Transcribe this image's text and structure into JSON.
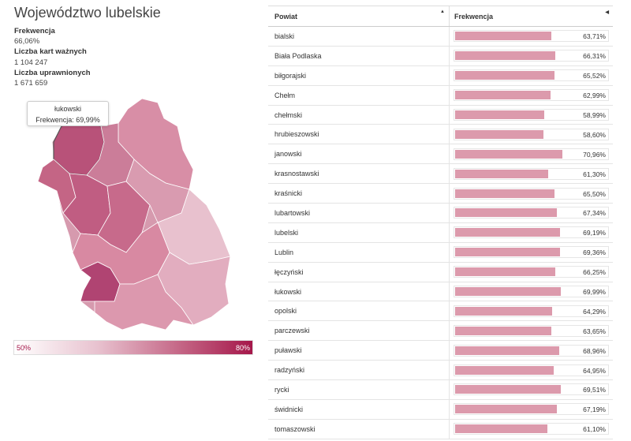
{
  "title": "Województwo lubelskie",
  "stats": [
    {
      "label": "Frekwencja",
      "value": "66,06%"
    },
    {
      "label": "Liczba kart ważnych",
      "value": "1 104 247"
    },
    {
      "label": "Liczba uprawnionych",
      "value": "1 671 659"
    }
  ],
  "tooltip": {
    "name": "łukowski",
    "text": "Frekwencja: 69,99%"
  },
  "legend": {
    "min": "50%",
    "max": "80%"
  },
  "colors": {
    "bar": "#dc9aac",
    "scale_low": "#ffffff",
    "scale_high": "#a5174a"
  },
  "table": {
    "headers": [
      "Powiat",
      "Frekwencja"
    ],
    "rows": [
      {
        "name": "bialski",
        "turnout": 63.71,
        "label": "63,71%"
      },
      {
        "name": "Biała Podlaska",
        "turnout": 66.31,
        "label": "66,31%"
      },
      {
        "name": "biłgorajski",
        "turnout": 65.52,
        "label": "65,52%"
      },
      {
        "name": "Chełm",
        "turnout": 62.99,
        "label": "62,99%"
      },
      {
        "name": "chełmski",
        "turnout": 58.99,
        "label": "58,99%"
      },
      {
        "name": "hrubieszowski",
        "turnout": 58.6,
        "label": "58,60%"
      },
      {
        "name": "janowski",
        "turnout": 70.96,
        "label": "70,96%"
      },
      {
        "name": "krasnostawski",
        "turnout": 61.3,
        "label": "61,30%"
      },
      {
        "name": "kraśnicki",
        "turnout": 65.5,
        "label": "65,50%"
      },
      {
        "name": "lubartowski",
        "turnout": 67.34,
        "label": "67,34%"
      },
      {
        "name": "lubelski",
        "turnout": 69.19,
        "label": "69,19%"
      },
      {
        "name": "Lublin",
        "turnout": 69.36,
        "label": "69,36%"
      },
      {
        "name": "łęczyński",
        "turnout": 66.25,
        "label": "66,25%"
      },
      {
        "name": "łukowski",
        "turnout": 69.99,
        "label": "69,99%"
      },
      {
        "name": "opolski",
        "turnout": 64.29,
        "label": "64,29%"
      },
      {
        "name": "parczewski",
        "turnout": 63.65,
        "label": "63,65%"
      },
      {
        "name": "puławski",
        "turnout": 68.96,
        "label": "68,96%"
      },
      {
        "name": "radzyński",
        "turnout": 64.95,
        "label": "64,95%"
      },
      {
        "name": "rycki",
        "turnout": 69.51,
        "label": "69,51%"
      },
      {
        "name": "świdnicki",
        "turnout": 67.19,
        "label": "67,19%"
      },
      {
        "name": "tomaszowski",
        "turnout": 61.1,
        "label": "61,10%"
      }
    ]
  }
}
